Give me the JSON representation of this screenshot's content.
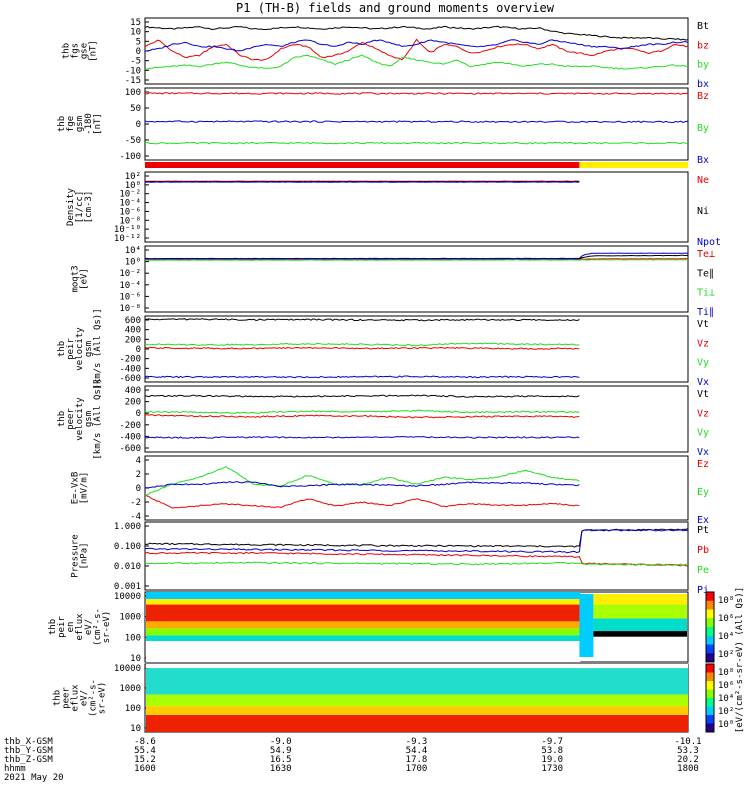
{
  "title": "P1 (TH-B) fields and ground moments overview",
  "colors": {
    "black": "#000000",
    "red": "#ee0000",
    "green": "#22dd22",
    "blue": "#0000cc",
    "yellow": "#ffee00"
  },
  "chart_data": [
    {
      "type": "line",
      "id": "fgs",
      "ylabel": [
        "thb",
        "fgs",
        "gse",
        "[nT]"
      ],
      "yticks": [
        "15",
        "10",
        "5",
        "0",
        "-5",
        "-10",
        "-15"
      ],
      "ylim": [
        -15,
        15
      ],
      "x": [
        1600,
        1605,
        1610,
        1615,
        1620,
        1625,
        1630,
        1635,
        1640,
        1645,
        1650,
        1655,
        1660,
        1665,
        1670,
        1675,
        1680,
        1685,
        1690,
        1695,
        1700,
        1705,
        1710,
        1715,
        1720,
        1725,
        1730,
        1735,
        1740,
        1745,
        1750,
        1755,
        1760,
        1765,
        1770,
        1775,
        1780,
        1785,
        1790,
        1795,
        1800
      ],
      "series": [
        {
          "name": "Bt",
          "color": "black",
          "values": [
            11,
            10.5,
            10,
            10.5,
            11,
            10,
            10.5,
            11,
            10,
            10,
            10.5,
            11,
            10.5,
            10,
            10.5,
            11,
            10.5,
            10,
            10.5,
            11,
            10.5,
            10,
            11,
            10.5,
            10,
            10.5,
            11,
            10.5,
            10,
            10.5,
            9,
            8,
            7.5,
            7,
            6.5,
            6,
            6,
            6,
            5.5,
            5.5,
            5
          ]
        },
        {
          "name": "bz",
          "color": "red",
          "values": [
            2,
            5,
            0,
            -3,
            -2,
            2,
            3,
            -2,
            -4,
            -4,
            1,
            3,
            2,
            -3,
            -2,
            0,
            4,
            1,
            -2,
            -4,
            5,
            -1,
            3,
            2,
            -1,
            0,
            2,
            3,
            3,
            1,
            3,
            0,
            -1,
            -2,
            0,
            1,
            1,
            -1,
            0,
            3,
            2
          ]
        },
        {
          "name": "by",
          "color": "green",
          "values": [
            -8,
            -7.5,
            -7,
            -6.5,
            -7,
            -6,
            -5,
            -6.5,
            -7.5,
            -8,
            -7,
            -3,
            -2,
            -4,
            -6,
            -4,
            -2,
            -5,
            -7,
            -3,
            -4,
            -5,
            -6,
            -4,
            -7,
            -6,
            -5,
            -6,
            -7,
            -6,
            -6,
            -7,
            -7,
            -7,
            -7.5,
            -8,
            -8,
            -7.5,
            -7,
            -6.5,
            -7
          ]
        },
        {
          "name": "bx",
          "color": "blue",
          "values": [
            0,
            1,
            3,
            4,
            2,
            2,
            1,
            0,
            2,
            3,
            2,
            4,
            5,
            3,
            2,
            4,
            3,
            5,
            4,
            2,
            3,
            5,
            4,
            3,
            2,
            2,
            3,
            5,
            4,
            3,
            5,
            4,
            3,
            2,
            2,
            1,
            2,
            3,
            3,
            4,
            4
          ]
        }
      ]
    },
    {
      "type": "line",
      "id": "fge",
      "ylabel": [
        "thb",
        "fge",
        "gsm",
        "-180",
        "[nT]"
      ],
      "yticks": [
        "100",
        "50",
        "0",
        "-50",
        "-100"
      ],
      "ylim": [
        -120,
        110
      ],
      "x": [
        1600,
        1800
      ],
      "series": [
        {
          "name": "Bz",
          "color": "red",
          "values": [
            93,
            92
          ]
        },
        {
          "name": "By",
          "color": "green",
          "values": [
            -66,
            -66
          ]
        },
        {
          "name": "Bx",
          "color": "blue",
          "values": [
            3,
            2
          ]
        }
      ]
    },
    {
      "type": "line",
      "id": "density",
      "ylabel": [
        "Density",
        "[1/cc]",
        "[cm-3]"
      ],
      "yticks": [
        "10²",
        "10⁰",
        "10⁻²",
        "10⁻⁴",
        "10⁻⁶",
        "10⁻⁸",
        "10⁻¹⁰",
        "10⁻¹²"
      ],
      "scale": "log",
      "ylim": [
        1e-13,
        1000
      ],
      "x": [
        1600,
        1760
      ],
      "series": [
        {
          "name": "Ne",
          "color": "red",
          "values": [
            8,
            8
          ]
        },
        {
          "name": "Ni",
          "color": "black",
          "values": [
            6,
            6
          ]
        },
        {
          "name": "Npot",
          "color": "blue",
          "values": [
            5,
            5
          ]
        }
      ]
    },
    {
      "type": "line",
      "id": "temperature",
      "ylabel": [
        "moqt3",
        "[eV]"
      ],
      "yticks": [
        "10⁴",
        "10⁰",
        "10⁻²",
        "10⁻⁴",
        "10⁻⁶",
        "10⁻⁸"
      ],
      "scale": "log",
      "ylim": [
        1e-09,
        100000
      ],
      "x": [
        1600,
        1760,
        1765,
        1800
      ],
      "series": [
        {
          "name": "Te⊥",
          "color": "red",
          "values": [
            150,
            160,
            180,
            200
          ]
        },
        {
          "name": "Te∥",
          "color": "black",
          "values": [
            200,
            200,
            800,
            1000
          ]
        },
        {
          "name": "Ti⊥",
          "color": "green",
          "values": [
            100,
            110,
            120,
            120
          ]
        },
        {
          "name": "Ti∥",
          "color": "blue",
          "values": [
            220,
            230,
            3000,
            3000
          ]
        }
      ]
    },
    {
      "type": "line",
      "id": "peir_velocity",
      "ylabel": [
        "thb",
        "peir",
        "velocity",
        "gsm",
        "[km/s (All Qs)]"
      ],
      "yticks": [
        "600",
        "400",
        "200",
        "0",
        "-200",
        "-400",
        "-600"
      ],
      "ylim": [
        -640,
        620
      ],
      "x": [
        1600,
        1620,
        1640,
        1660,
        1680,
        1700,
        1720,
        1740,
        1760
      ],
      "series": [
        {
          "name": "Vt",
          "color": "black",
          "values": [
            555,
            560,
            548,
            552,
            545,
            540,
            548,
            545,
            545
          ]
        },
        {
          "name": "Vz",
          "color": "red",
          "values": [
            10,
            5,
            0,
            15,
            0,
            10,
            5,
            -5,
            0
          ]
        },
        {
          "name": "Vy",
          "color": "green",
          "values": [
            80,
            70,
            75,
            90,
            80,
            60,
            100,
            80,
            75
          ]
        },
        {
          "name": "Vx",
          "color": "blue",
          "values": [
            -540,
            -545,
            -542,
            -548,
            -540,
            -535,
            -545,
            -540,
            -545
          ]
        }
      ]
    },
    {
      "type": "line",
      "id": "peer_velocity",
      "ylabel": [
        "thb",
        "peer",
        "velocity",
        "gsm",
        "[km/s (All Qs)]"
      ],
      "yticks": [
        "400",
        "200",
        "0",
        "-200",
        "-400",
        "-600"
      ],
      "ylim": [
        -620,
        560
      ],
      "x": [
        1600,
        1620,
        1640,
        1660,
        1680,
        1700,
        1720,
        1740,
        1760
      ],
      "series": [
        {
          "name": "Vt",
          "color": "black",
          "values": [
            380,
            385,
            370,
            375,
            380,
            390,
            370,
            375,
            380
          ]
        },
        {
          "name": "Vz",
          "color": "red",
          "values": [
            40,
            20,
            10,
            30,
            20,
            0,
            10,
            20,
            10
          ]
        },
        {
          "name": "Vy",
          "color": "green",
          "values": [
            100,
            90,
            80,
            110,
            100,
            120,
            90,
            100,
            95
          ]
        },
        {
          "name": "Vx",
          "color": "blue",
          "values": [
            -360,
            -365,
            -355,
            -360,
            -358,
            -350,
            -362,
            -358,
            -360
          ]
        }
      ]
    },
    {
      "type": "line",
      "id": "efield",
      "ylabel": [
        "E=-VxB",
        "[mV/m]"
      ],
      "yticks": [
        "4",
        "2",
        "0",
        "-2",
        "-4"
      ],
      "ylim": [
        -4.5,
        4.5
      ],
      "x": [
        1600,
        1610,
        1620,
        1630,
        1640,
        1650,
        1660,
        1670,
        1680,
        1690,
        1700,
        1710,
        1720,
        1730,
        1740,
        1750,
        1760
      ],
      "series": [
        {
          "name": "Ez",
          "color": "red",
          "values": [
            -1,
            -2.8,
            -2.5,
            -2.2,
            -2.5,
            -2.7,
            -1.5,
            -2.5,
            -2,
            -2.5,
            -1.5,
            -2.6,
            -2.2,
            -2.4,
            -2.4,
            -2.2,
            -2.5
          ]
        },
        {
          "name": "Ey",
          "color": "green",
          "values": [
            -1,
            0.5,
            1.5,
            3,
            0.5,
            0.3,
            1.8,
            0.5,
            0.5,
            1.5,
            0.5,
            1.5,
            1.2,
            1.5,
            2.5,
            1.5,
            1
          ]
        },
        {
          "name": "Ex",
          "color": "blue",
          "values": [
            0,
            0.5,
            0.5,
            0.8,
            0.8,
            0.2,
            0.3,
            0.5,
            0.5,
            0.4,
            0.3,
            0.5,
            0.8,
            0.7,
            0.7,
            0.5,
            0.4
          ]
        }
      ]
    },
    {
      "type": "line",
      "id": "pressure",
      "ylabel": [
        "Pressure",
        "[nPa]"
      ],
      "yticks": [
        "1.000",
        "0.100",
        "0.010",
        "0.001"
      ],
      "scale": "log",
      "ylim": [
        0.0009,
        1.2
      ],
      "x": [
        1600,
        1640,
        1680,
        1720,
        1760,
        1761,
        1800
      ],
      "series": [
        {
          "name": "Pt",
          "color": "black",
          "values": [
            0.12,
            0.11,
            0.1,
            0.095,
            0.09,
            0.5,
            0.55
          ]
        },
        {
          "name": "Pb",
          "color": "red",
          "values": [
            0.045,
            0.045,
            0.04,
            0.035,
            0.03,
            0.015,
            0.012
          ]
        },
        {
          "name": "Pe",
          "color": "green",
          "values": [
            0.015,
            0.016,
            0.015,
            0.014,
            0.016,
            0.014,
            0.013
          ]
        },
        {
          "name": "Pi",
          "color": "blue",
          "values": [
            0.07,
            0.065,
            0.06,
            0.055,
            0.05,
            0.5,
            0.5
          ]
        }
      ]
    },
    {
      "type": "heatmap",
      "id": "peir_spec",
      "ylabel": [
        "thb",
        "peir",
        "en",
        "eflux",
        "eV/",
        "(cm²-s-",
        "sr-eV)"
      ],
      "yticks": [
        "10000",
        "1000",
        "100",
        "10"
      ],
      "colorbar_ticks": [
        "10⁸",
        "10⁶",
        "10⁴",
        "10²"
      ],
      "colorbar_label": "[eV/(cm²-s-sr-eV) (All Qs)]"
    },
    {
      "type": "heatmap",
      "id": "peer_spec",
      "ylabel": [
        "thb",
        "peer",
        "eflux",
        "eV/",
        "(cm²-s-",
        "sr-eV)"
      ],
      "yticks": [
        "10000",
        "1000",
        "100",
        "10"
      ],
      "colorbar_ticks": [
        "10⁸",
        "10⁶",
        "10⁴",
        "10²",
        "10⁰"
      ],
      "colorbar_label": "[eV/(cm²-s-sr-eV) (All Qs)]"
    }
  ],
  "mode_bar": {
    "red_until": 1760,
    "yellow_from": 1760
  },
  "xaxis": {
    "rows": [
      {
        "label": "thb_X-GSM",
        "values": [
          "-8.6",
          "-9.0",
          "-9.3",
          "-9.7",
          "-10.1"
        ]
      },
      {
        "label": "thb_Y-GSM",
        "values": [
          "55.4",
          "54.9",
          "54.4",
          "53.8",
          "53.3"
        ]
      },
      {
        "label": "thb_Z-GSM",
        "values": [
          "15.2",
          "16.5",
          "17.8",
          "19.0",
          "20.2"
        ]
      },
      {
        "label": "hhmm",
        "values": [
          "1600",
          "1630",
          "1700",
          "1730",
          "1800"
        ]
      }
    ],
    "date": "2021 May 20"
  }
}
